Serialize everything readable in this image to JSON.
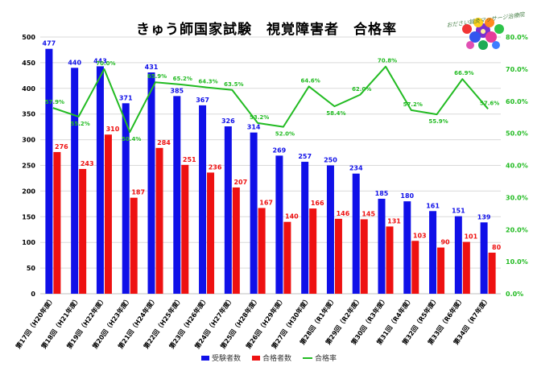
{
  "title": "きゅう師国家試験　視覚障害者　合格率",
  "logo_text": "おださい鍼灸マッサージ治療院",
  "colors": {
    "examinees": "#1010e8",
    "passers": "#ee1111",
    "rate": "#22bb22"
  },
  "chart_data": {
    "type": "bar",
    "categories": [
      "第17回（H20年度）",
      "第18回（H21年度）",
      "第19回（H22年度）",
      "第20回（H23年度）",
      "第21回（H24年度）",
      "第22回（H25年度）",
      "第23回（H26年度）",
      "第24回（H27年度）",
      "第25回（H28年度）",
      "第26回（H29年度）",
      "第27回（H30年度）",
      "第28回（R1年度）",
      "第29回（R2年度）",
      "第30回（R3年度）",
      "第31回（R4年度）",
      "第32回（R5年度）",
      "第33回（R6年度）",
      "第34回（R7年度）"
    ],
    "series": [
      {
        "name": "受験者数",
        "type": "bar",
        "axis": "left",
        "values": [
          477,
          440,
          443,
          371,
          431,
          385,
          367,
          326,
          314,
          269,
          257,
          250,
          234,
          185,
          180,
          161,
          151,
          139
        ]
      },
      {
        "name": "合格者数",
        "type": "bar",
        "axis": "left",
        "values": [
          276,
          243,
          310,
          187,
          284,
          251,
          236,
          207,
          167,
          140,
          166,
          146,
          145,
          131,
          103,
          90,
          101,
          80
        ]
      },
      {
        "name": "合格率",
        "type": "line",
        "axis": "right",
        "values": [
          57.9,
          55.2,
          70.0,
          50.4,
          65.9,
          65.2,
          64.3,
          63.5,
          53.2,
          52.0,
          64.6,
          58.4,
          62.0,
          70.8,
          57.2,
          55.9,
          66.9,
          57.6
        ],
        "labels": [
          "57.9%",
          "55.2%",
          "70.0%",
          "50.4%",
          "65.9%",
          "65.2%",
          "64.3%",
          "63.5%",
          "53.2%",
          "52.0%",
          "64.6%",
          "58.4%",
          "62.0%",
          "70.8%",
          "57.2%",
          "55.9%",
          "66.9%",
          "57.6%"
        ]
      }
    ],
    "ylim": [
      0,
      500
    ],
    "yticks": [
      "0",
      "50",
      "100",
      "150",
      "200",
      "250",
      "300",
      "350",
      "400",
      "450",
      "500"
    ],
    "y2lim": [
      0,
      80
    ],
    "y2ticks": [
      "0.0%",
      "10.0%",
      "20.0%",
      "30.0%",
      "40.0%",
      "50.0%",
      "60.0%",
      "70.0%",
      "80.0%"
    ],
    "grid": true,
    "legend_position": "bottom"
  }
}
